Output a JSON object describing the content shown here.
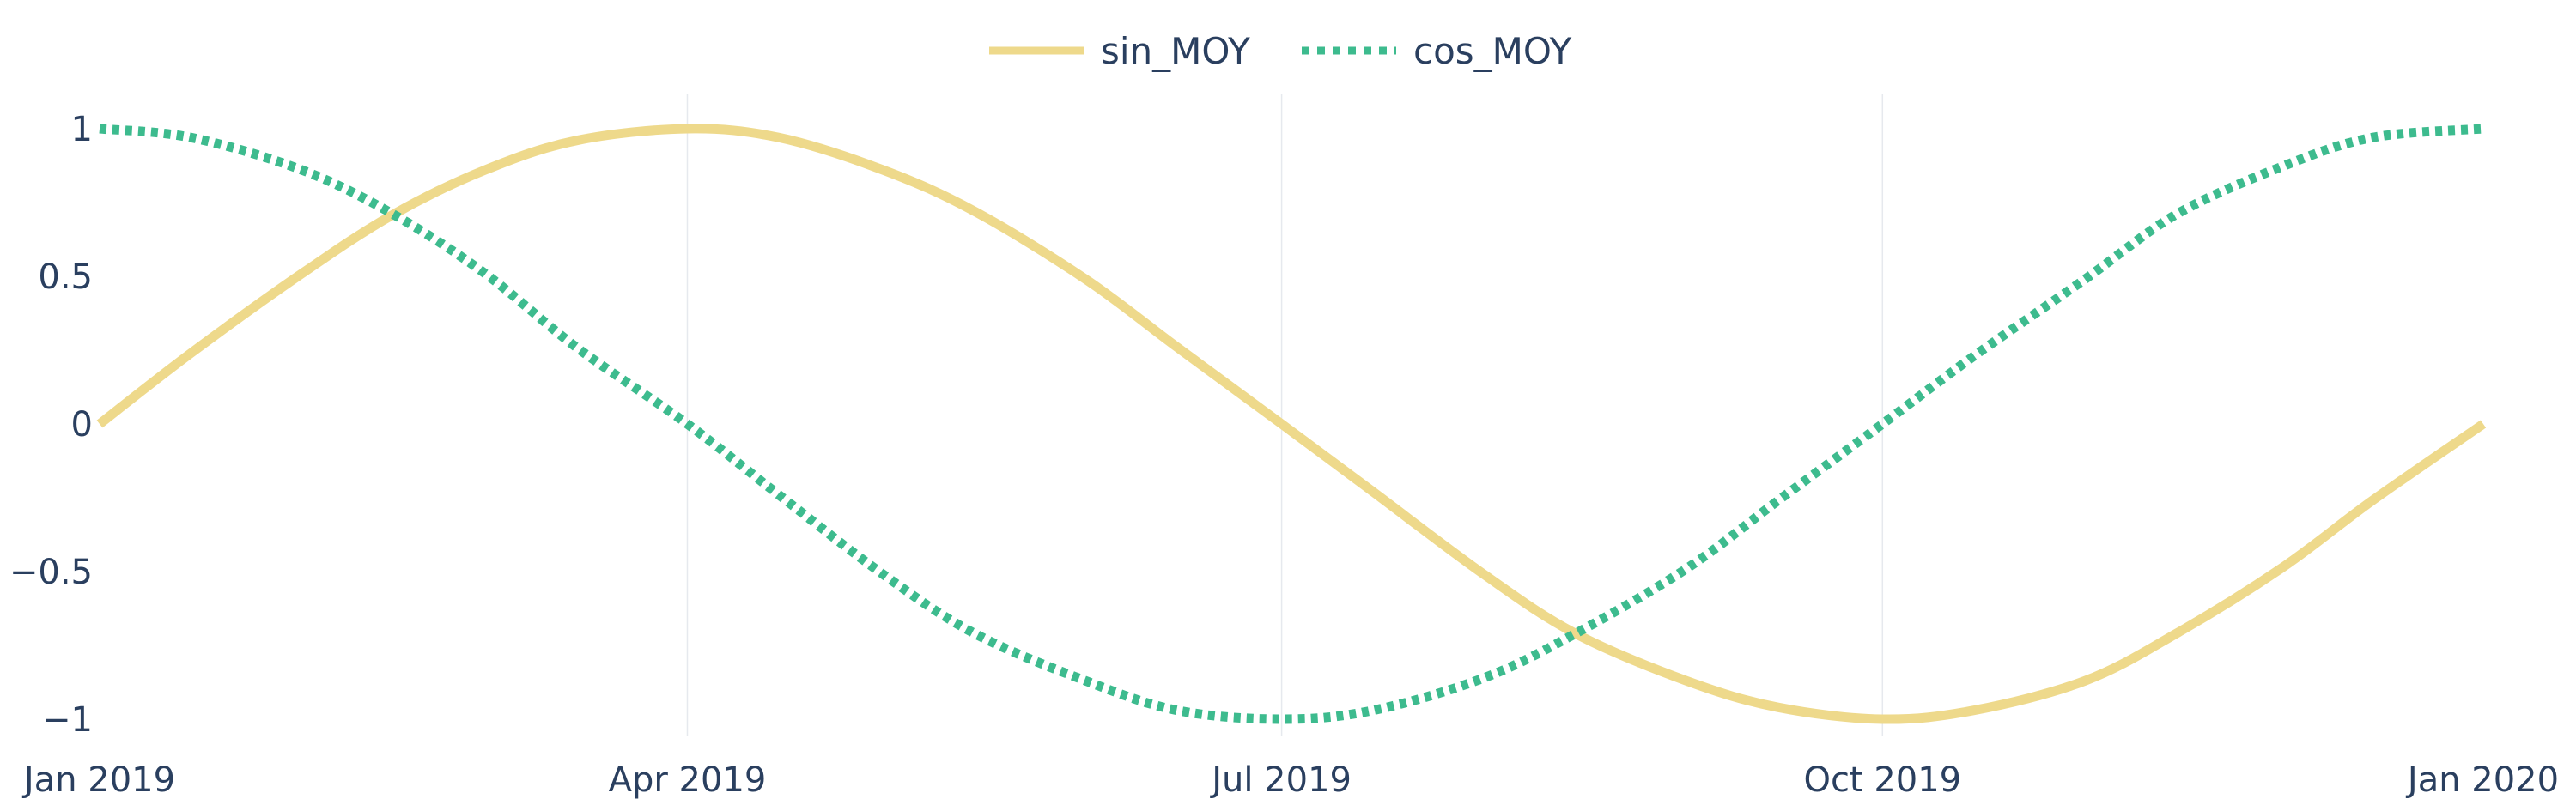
{
  "chart_data": {
    "type": "line",
    "x_type": "date",
    "x_range": [
      "2019-01-01",
      "2020-01-01"
    ],
    "x_ticks": [
      {
        "date": "2019-01-01",
        "label": "Jan 2019"
      },
      {
        "date": "2019-04-01",
        "label": "Apr 2019"
      },
      {
        "date": "2019-07-01",
        "label": "Jul 2019"
      },
      {
        "date": "2019-10-01",
        "label": "Oct 2019"
      },
      {
        "date": "2020-01-01",
        "label": "Jan 2020"
      }
    ],
    "y_range": [
      -1,
      1
    ],
    "y_ticks": [
      {
        "value": 1,
        "label": "1"
      },
      {
        "value": 0.5,
        "label": "0.5"
      },
      {
        "value": 0,
        "label": "0"
      },
      {
        "value": -0.5,
        "label": "−0.5"
      },
      {
        "value": -1,
        "label": "−1"
      }
    ],
    "grid": {
      "vertical": true,
      "horizontal": false
    },
    "legend": {
      "placement": "top-center",
      "orientation": "horizontal"
    },
    "series": [
      {
        "name": "sin_MOY",
        "color": "#eed98b",
        "dash": "solid",
        "x": [
          "2019-01-01",
          "2019-01-15",
          "2019-02-01",
          "2019-02-15",
          "2019-03-01",
          "2019-03-15",
          "2019-04-01",
          "2019-04-15",
          "2019-05-01",
          "2019-05-15",
          "2019-06-01",
          "2019-06-15",
          "2019-07-01",
          "2019-07-15",
          "2019-08-01",
          "2019-08-15",
          "2019-09-01",
          "2019-09-15",
          "2019-10-01",
          "2019-10-15",
          "2019-11-01",
          "2019-11-15",
          "2019-12-01",
          "2019-12-15",
          "2020-01-01"
        ],
        "y": [
          0.0,
          0.24,
          0.51,
          0.71,
          0.86,
          0.96,
          1.0,
          0.97,
          0.86,
          0.72,
          0.49,
          0.26,
          0.0,
          -0.23,
          -0.51,
          -0.71,
          -0.87,
          -0.96,
          -1.0,
          -0.97,
          -0.87,
          -0.71,
          -0.49,
          -0.26,
          0.0
        ]
      },
      {
        "name": "cos_MOY",
        "color": "#3dbb8e",
        "dash": "dot",
        "x": [
          "2019-01-01",
          "2019-01-15",
          "2019-02-01",
          "2019-02-15",
          "2019-03-01",
          "2019-03-15",
          "2019-04-01",
          "2019-04-15",
          "2019-05-01",
          "2019-05-15",
          "2019-06-01",
          "2019-06-15",
          "2019-07-01",
          "2019-07-15",
          "2019-08-01",
          "2019-08-15",
          "2019-09-01",
          "2019-09-15",
          "2019-10-01",
          "2019-10-15",
          "2019-11-01",
          "2019-11-15",
          "2019-12-01",
          "2019-12-15",
          "2020-01-01"
        ],
        "y": [
          1.0,
          0.97,
          0.86,
          0.71,
          0.51,
          0.26,
          0.0,
          -0.24,
          -0.51,
          -0.71,
          -0.87,
          -0.97,
          -1.0,
          -0.97,
          -0.86,
          -0.71,
          -0.49,
          -0.26,
          0.0,
          0.23,
          0.49,
          0.71,
          0.87,
          0.97,
          1.0
        ]
      }
    ]
  }
}
